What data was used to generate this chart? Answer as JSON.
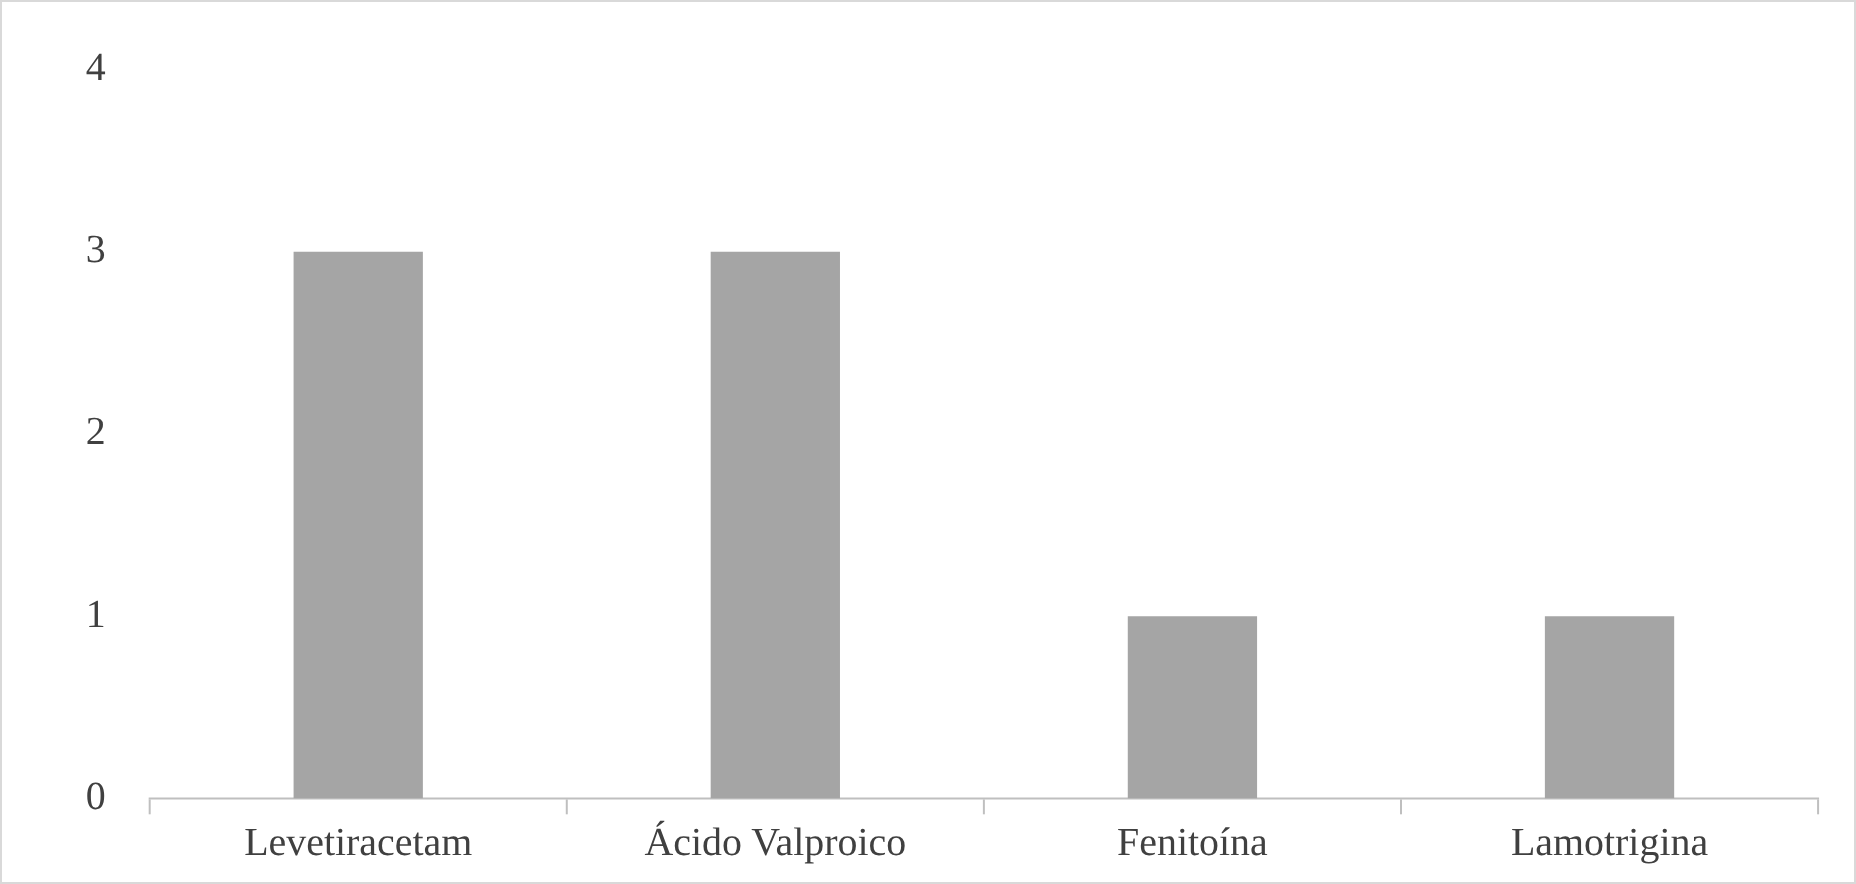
{
  "chart_data": {
    "type": "bar",
    "categories": [
      "Levetiracetam",
      "Ácido Valproico",
      "Fenitoína",
      "Lamotrigina"
    ],
    "values": [
      3,
      3,
      1,
      1
    ],
    "color": "#a5a5a5",
    "ylim": [
      0,
      4
    ],
    "yticks": [
      0,
      1,
      2,
      3,
      4
    ],
    "grid": false,
    "legend": false
  }
}
